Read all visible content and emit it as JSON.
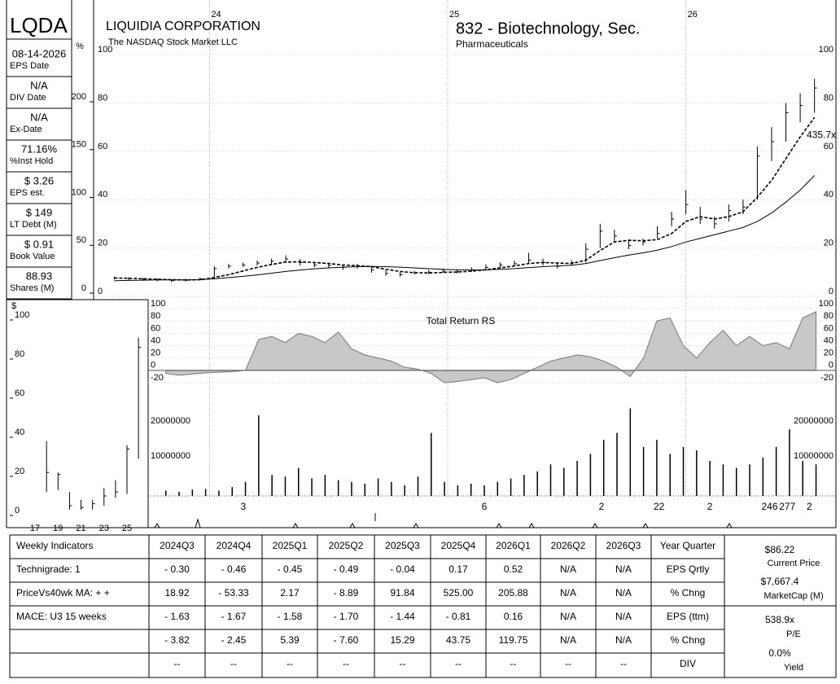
{
  "header": {
    "ticker": "LQDA",
    "company": "LIQUIDIA CORPORATION",
    "exchange": "The NASDAQ Stock Market LLC",
    "group": "832 - Biotechnology, Sec.",
    "subgroup": "Pharmaceuticals"
  },
  "sidebar": [
    {
      "value": "08-14-2026",
      "label": "EPS Date"
    },
    {
      "value": "N/A",
      "label": "DIV Date"
    },
    {
      "value": "N/A",
      "label": "Ex-Date"
    },
    {
      "value": "71.16%",
      "label": "%Inst Hold"
    },
    {
      "value": "$ 3.26",
      "label": "EPS est."
    },
    {
      "value": "$ 149",
      "label": "LT Debt (M)"
    },
    {
      "value": "$ 0.91",
      "label": "Book Value"
    },
    {
      "value": "88.93",
      "label": "Shares (M)"
    }
  ],
  "chart_data": [
    {
      "type": "ohlc",
      "color": "#000000",
      "grid": true,
      "y2_label": "%",
      "x": [
        23.6,
        23.66,
        23.72,
        23.78,
        23.84,
        23.9,
        23.96,
        24.02,
        24.08,
        24.14,
        24.2,
        24.26,
        24.32,
        24.38,
        24.44,
        24.5,
        24.56,
        24.62,
        24.68,
        24.74,
        24.8,
        24.86,
        24.92,
        24.98,
        25.04,
        25.1,
        25.16,
        25.22,
        25.28,
        25.34,
        25.4,
        25.46,
        25.52,
        25.58,
        25.64,
        25.7,
        25.76,
        25.82,
        25.88,
        25.94,
        26.0,
        26.06,
        26.12,
        26.18,
        26.24,
        26.3,
        26.36,
        26.42,
        26.48,
        26.54
      ],
      "high": [
        8.2,
        7.9,
        7.6,
        7.4,
        7.1,
        7.3,
        7.8,
        12.5,
        13.4,
        14.0,
        14.8,
        15.6,
        17.0,
        15.5,
        14.2,
        14.0,
        13.2,
        13.5,
        12.3,
        10.8,
        10.0,
        10.6,
        11.0,
        11.5,
        11.3,
        12.0,
        13.2,
        14.1,
        14.8,
        18.0,
        15.6,
        14.0,
        15.0,
        22.0,
        30.0,
        27.5,
        23.5,
        24.0,
        29.0,
        35.0,
        44.0,
        37.0,
        33.0,
        38.0,
        40.0,
        62.0,
        70.0,
        80.0,
        84.0,
        90.0
      ],
      "low": [
        7.0,
        6.8,
        6.5,
        6.3,
        6.0,
        6.2,
        6.7,
        8.0,
        11.5,
        12.2,
        12.8,
        13.5,
        14.0,
        12.8,
        12.0,
        11.8,
        11.0,
        11.5,
        9.8,
        8.5,
        8.2,
        9.0,
        9.2,
        9.7,
        9.5,
        10.2,
        11.0,
        12.0,
        12.5,
        13.8,
        12.8,
        11.5,
        12.8,
        14.0,
        20.0,
        22.5,
        19.5,
        21.0,
        24.0,
        29.0,
        34.0,
        30.0,
        28.0,
        31.0,
        34.0,
        40.0,
        56.0,
        64.0,
        72.0,
        76.0
      ],
      "close": [
        7.5,
        7.3,
        7.0,
        6.8,
        6.5,
        6.7,
        7.2,
        11.5,
        12.5,
        13.0,
        13.8,
        14.5,
        15.5,
        14.0,
        13.0,
        12.8,
        12.0,
        12.5,
        11.0,
        9.5,
        9.0,
        9.8,
        10.0,
        10.5,
        10.2,
        11.0,
        12.0,
        13.0,
        13.5,
        15.0,
        14.0,
        12.5,
        14.0,
        19.5,
        27.0,
        25.0,
        21.0,
        22.5,
        26.0,
        32.0,
        38.0,
        32.0,
        30.0,
        35.5,
        37.0,
        58.0,
        64.0,
        76.0,
        79.0,
        86.2
      ],
      "moving_averages": [
        {
          "dashed": true,
          "values": [
            7.6,
            7.5,
            7.3,
            7.1,
            6.9,
            6.8,
            6.9,
            7.8,
            9.0,
            10.5,
            12.0,
            13.2,
            14.2,
            14.3,
            14.0,
            13.6,
            13.0,
            12.7,
            12.3,
            11.2,
            10.3,
            9.8,
            9.7,
            9.9,
            10.1,
            10.4,
            11.0,
            11.8,
            12.6,
            13.6,
            14.0,
            13.8,
            13.6,
            15.0,
            19.0,
            22.5,
            23.2,
            23.0,
            23.5,
            26.0,
            31.0,
            33.0,
            32.0,
            33.0,
            35.0,
            41.0,
            48.0,
            57.0,
            66.0,
            74.0
          ]
        },
        {
          "dashed": false,
          "values": [
            6.5,
            6.6,
            6.7,
            6.8,
            6.8,
            6.8,
            6.9,
            7.3,
            7.8,
            8.3,
            8.9,
            9.6,
            10.3,
            10.9,
            11.4,
            11.8,
            12.1,
            12.3,
            12.4,
            12.3,
            12.1,
            11.8,
            11.5,
            11.2,
            11.0,
            10.9,
            11.0,
            11.2,
            11.5,
            11.9,
            12.3,
            12.6,
            12.9,
            13.6,
            14.8,
            16.0,
            17.1,
            18.0,
            19.1,
            20.6,
            22.5,
            24.0,
            25.5,
            27.0,
            28.5,
            31.0,
            34.5,
            39.0,
            44.0,
            50.0
          ]
        }
      ],
      "annotation": {
        "text": "435.7x",
        "y": 66.5
      },
      "xlim": [
        23.52,
        26.63
      ],
      "xticks": [
        24,
        25,
        26
      ],
      "ylim": [
        -1.35,
        119.9
      ],
      "yticks": [
        0,
        20,
        40,
        60,
        80,
        100
      ],
      "y2lim": [
        -6.8,
        299.6
      ],
      "y2ticks": [
        0,
        50,
        100,
        150,
        200
      ]
    },
    {
      "type": "area",
      "title": "Total Return RS",
      "color": "#c8c8c8",
      "grid": true,
      "x": [
        23.6,
        23.66,
        23.72,
        23.78,
        23.84,
        23.9,
        23.96,
        24.02,
        24.08,
        24.14,
        24.2,
        24.26,
        24.32,
        24.38,
        24.44,
        24.5,
        24.56,
        24.62,
        24.68,
        24.74,
        24.8,
        24.86,
        24.92,
        24.98,
        25.04,
        25.1,
        25.16,
        25.22,
        25.28,
        25.34,
        25.4,
        25.46,
        25.52,
        25.58,
        25.64,
        25.7,
        25.76,
        25.82,
        25.88,
        25.94,
        26.0,
        26.06,
        26.12,
        26.18,
        26.24,
        26.3,
        26.36,
        26.42,
        26.48,
        26.54
      ],
      "values": [
        -5,
        -8,
        -6,
        -4,
        -3,
        -2,
        0,
        50,
        55,
        45,
        60,
        55,
        45,
        62,
        35,
        25,
        20,
        15,
        5,
        2,
        -5,
        -20,
        -18,
        -15,
        -12,
        -20,
        -15,
        -5,
        5,
        15,
        20,
        25,
        22,
        15,
        5,
        -10,
        20,
        80,
        85,
        40,
        20,
        45,
        65,
        40,
        55,
        40,
        45,
        35,
        85,
        95
      ],
      "xlim": [
        23.52,
        26.63
      ],
      "ylim": [
        -33.2,
        111.9
      ],
      "yticks": [
        -20,
        0,
        20,
        40,
        60,
        80,
        100
      ]
    },
    {
      "type": "bar",
      "color": "#000000",
      "x": [
        23.6,
        23.66,
        23.72,
        23.78,
        23.84,
        23.9,
        23.96,
        24.02,
        24.08,
        24.14,
        24.2,
        24.26,
        24.32,
        24.38,
        24.44,
        24.5,
        24.56,
        24.62,
        24.68,
        24.74,
        24.8,
        24.86,
        24.92,
        24.98,
        25.04,
        25.1,
        25.16,
        25.22,
        25.28,
        25.34,
        25.4,
        25.46,
        25.52,
        25.58,
        25.64,
        25.7,
        25.76,
        25.82,
        25.88,
        25.94,
        26.0,
        26.06,
        26.12,
        26.18,
        26.24,
        26.3,
        26.36,
        26.42,
        26.48,
        26.54
      ],
      "values": [
        1500000,
        1200000,
        1800000,
        2000000,
        1500000,
        2500000,
        4000000,
        23000000,
        6000000,
        5500000,
        8000000,
        5000000,
        6000000,
        4500000,
        4000000,
        3500000,
        5000000,
        4000000,
        3000000,
        5500000,
        18000000,
        4000000,
        3000000,
        3500000,
        3000000,
        4000000,
        5000000,
        6000000,
        7000000,
        9000000,
        8000000,
        10000000,
        12000000,
        16000000,
        18000000,
        25000000,
        14000000,
        16000000,
        12000000,
        14000000,
        13000000,
        10000000,
        9000000,
        8000000,
        9000000,
        11000000,
        14000000,
        19000000,
        10000000,
        9000000
      ],
      "events": [
        {
          "x": 23.95,
          "label": "3"
        },
        {
          "x": 25.04,
          "label": "6"
        },
        {
          "x": 25.57,
          "label": "2"
        },
        {
          "x": 25.83,
          "label": "22"
        },
        {
          "x": 26.06,
          "label": "2"
        },
        {
          "x": 26.33,
          "label": "246"
        },
        {
          "x": 26.41,
          "label": "277"
        },
        {
          "x": 26.51,
          "label": "2"
        }
      ],
      "xlim": [
        23.52,
        26.63
      ],
      "ylim": [
        -700000,
        28840000
      ],
      "yticks": [
        10000000,
        20000000
      ]
    },
    {
      "type": "ohlc",
      "color": "#000000",
      "y_label": "$",
      "x": [
        18,
        19,
        20,
        21,
        22,
        23,
        24,
        25,
        26
      ],
      "high": [
        38,
        22,
        12,
        8,
        8,
        14,
        18,
        36,
        91
      ],
      "low": [
        12,
        13,
        3,
        3,
        3,
        5,
        9,
        11,
        29
      ],
      "close": [
        22,
        21,
        5,
        4,
        6,
        10,
        12,
        34,
        86
      ],
      "xlim": [
        14.8,
        26.77
      ],
      "xticks": [
        17,
        19,
        21,
        23,
        25
      ],
      "ylim": [
        -3.75,
        110.4
      ],
      "yticks": [
        0,
        20,
        40,
        60,
        80,
        100
      ]
    }
  ],
  "table": {
    "header": [
      "Weekly Indicators",
      "2024Q3",
      "2024Q4",
      "2025Q1",
      "2025Q2",
      "2025Q3",
      "2025Q4",
      "2026Q1",
      "2026Q2",
      "2026Q3",
      "Year Quarter"
    ],
    "rows": [
      {
        "label": "Technigrade: 1",
        "cells": [
          "- 0.30",
          "- 0.46",
          "- 0.45",
          "- 0.49",
          "- 0.04",
          "0.17",
          "0.52",
          "N/A",
          "N/A",
          "EPS Qrtly"
        ]
      },
      {
        "label": "PriceVs40wk MA:  + +",
        "cells": [
          "18.92",
          "- 53.33",
          "2.17",
          "- 8.89",
          "91.84",
          "525.00",
          "205.88",
          "N/A",
          "N/A",
          "% Chng"
        ]
      },
      {
        "label": "MACE: U3  15 weeks",
        "cells": [
          "- 1.63",
          "- 1.67",
          "- 1.58",
          "- 1.70",
          "- 1.44",
          "- 0.81",
          "0.16",
          "N/A",
          "N/A",
          "EPS (ttm)"
        ]
      },
      {
        "cells": [
          "- 3.82",
          "- 2.45",
          "5.39",
          "- 7.60",
          "15.29",
          "43.75",
          "119.75",
          "N/A",
          "N/A",
          "% Chng"
        ]
      },
      {
        "cells": [
          "--",
          "--",
          "--",
          "--",
          "--",
          "--",
          "--",
          "--",
          "--",
          "DIV"
        ]
      }
    ]
  },
  "summary": [
    {
      "value": "$86.22",
      "label": "Current Price"
    },
    {
      "value": "$7,667.4",
      "label": "MarketCap (M)"
    },
    {
      "value": "538.9x",
      "label": "P/E"
    },
    {
      "value": "0.0%",
      "label": "Yield"
    }
  ]
}
